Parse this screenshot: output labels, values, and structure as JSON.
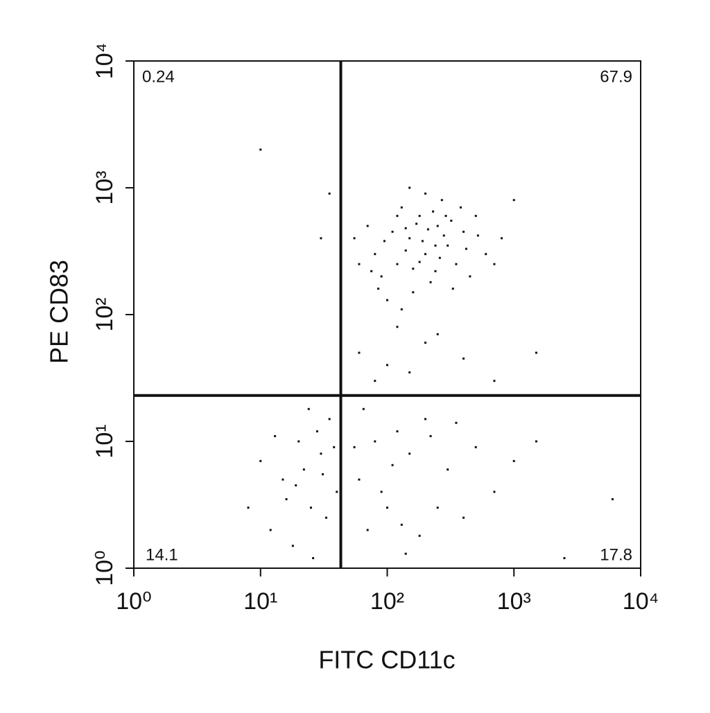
{
  "chart_data": {
    "type": "scatter",
    "x_label": "FITC CD11c",
    "y_label": "PE CD83",
    "log_x": true,
    "log_y": true,
    "color": "#111111",
    "xlim": [
      1,
      10000
    ],
    "ylim": [
      1,
      10000
    ],
    "xticks": [
      {
        "value": 1,
        "label": "10⁰"
      },
      {
        "value": 10,
        "label": "10¹"
      },
      {
        "value": 100,
        "label": "10²"
      },
      {
        "value": 1000,
        "label": "10³"
      },
      {
        "value": 10000,
        "label": "10⁴"
      }
    ],
    "yticks": [
      {
        "value": 1,
        "label": "10⁰"
      },
      {
        "value": 10,
        "label": "10¹"
      },
      {
        "value": 100,
        "label": "10²"
      },
      {
        "value": 1000,
        "label": "10³"
      },
      {
        "value": 10000,
        "label": "10⁴"
      }
    ],
    "gate_x": 43,
    "gate_y": 23,
    "quadrants": {
      "upper_left": "0.24",
      "upper_right": "67.9",
      "lower_left": "14.1",
      "lower_right": "17.8"
    },
    "x": [
      150,
      200,
      250,
      120,
      300,
      180,
      90,
      400,
      220,
      130,
      350,
      80,
      500,
      160,
      270,
      110,
      600,
      200,
      70,
      240,
      320,
      140,
      450,
      100,
      190,
      280,
      60,
      170,
      800,
      230,
      130,
      380,
      95,
      260,
      150,
      700,
      210,
      85,
      330,
      180,
      55,
      420,
      120,
      290,
      160,
      1000,
      240,
      75,
      140,
      520,
      60,
      100,
      200,
      80,
      400,
      150,
      1500,
      700,
      120,
      250,
      15,
      20,
      25,
      30,
      12,
      35,
      18,
      22,
      40,
      28,
      10,
      16,
      33,
      24,
      38,
      13,
      26,
      19,
      31,
      8,
      60,
      80,
      100,
      150,
      200,
      70,
      120,
      300,
      90,
      250,
      500,
      180,
      65,
      400,
      110,
      140,
      700,
      1000,
      220,
      55,
      6000,
      2500,
      1500,
      350,
      130,
      10,
      35,
      30
    ],
    "y": [
      400,
      300,
      500,
      250,
      350,
      600,
      200,
      450,
      180,
      700,
      250,
      300,
      600,
      150,
      800,
      450,
      300,
      900,
      500,
      220,
      550,
      320,
      200,
      130,
      380,
      420,
      250,
      520,
      400,
      650,
      110,
      700,
      380,
      280,
      1000,
      250,
      470,
      160,
      160,
      260,
      400,
      330,
      600,
      600,
      230,
      800,
      350,
      220,
      480,
      420,
      50,
      40,
      60,
      30,
      45,
      35,
      50,
      30,
      80,
      70,
      5,
      10,
      3,
      8,
      2,
      15,
      1.5,
      6,
      4,
      12,
      7,
      3.5,
      2.5,
      18,
      9,
      11,
      1.2,
      4.5,
      5.5,
      3,
      5,
      10,
      3,
      8,
      15,
      2,
      12,
      6,
      4,
      3,
      9,
      1.8,
      18,
      2.5,
      6.5,
      1.3,
      4,
      7,
      11,
      9,
      3.5,
      1.2,
      10,
      14,
      2.2,
      2000,
      900,
      400
    ]
  }
}
